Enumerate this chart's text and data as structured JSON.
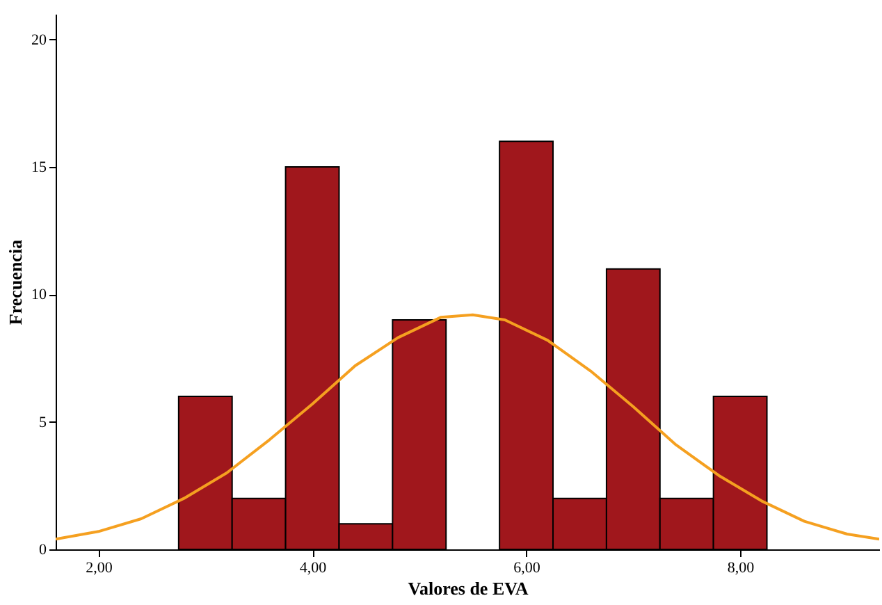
{
  "chart_data": {
    "type": "histogram",
    "xlabel": "Valores de EVA",
    "ylabel": "Frecuencia",
    "series": [
      {
        "color": "#a0171c",
        "bins": [
          2.75,
          3.25,
          3.75,
          4.25,
          4.75,
          5.25,
          5.75,
          6.25,
          6.75,
          7.25,
          7.75,
          8.25
        ],
        "values": [
          6,
          2,
          15,
          1,
          9,
          0,
          16,
          2,
          11,
          2,
          6
        ]
      },
      {
        "type": "line",
        "color": "#f5a020",
        "x": [
          1.6,
          2.0,
          2.4,
          2.8,
          3.2,
          3.6,
          4.0,
          4.4,
          4.8,
          5.2,
          5.5,
          5.8,
          6.2,
          6.6,
          7.0,
          7.4,
          7.8,
          8.2,
          8.6,
          9.0,
          9.3
        ],
        "values": [
          0.4,
          0.7,
          1.2,
          2.0,
          3.0,
          4.3,
          5.7,
          7.2,
          8.3,
          9.1,
          9.2,
          9.0,
          8.2,
          7.0,
          5.6,
          4.1,
          2.9,
          1.9,
          1.1,
          0.6,
          0.4
        ]
      }
    ],
    "xlim": [
      1.6,
      9.3
    ],
    "xticks": [
      {
        "value": 2,
        "label": "2,00"
      },
      {
        "value": 4,
        "label": "4,00"
      },
      {
        "value": 6,
        "label": "6,00"
      },
      {
        "value": 8,
        "label": "8,00"
      }
    ],
    "ylim": [
      0,
      21
    ],
    "yticks": [
      0,
      5,
      10,
      15,
      20
    ],
    "grid": false
  }
}
